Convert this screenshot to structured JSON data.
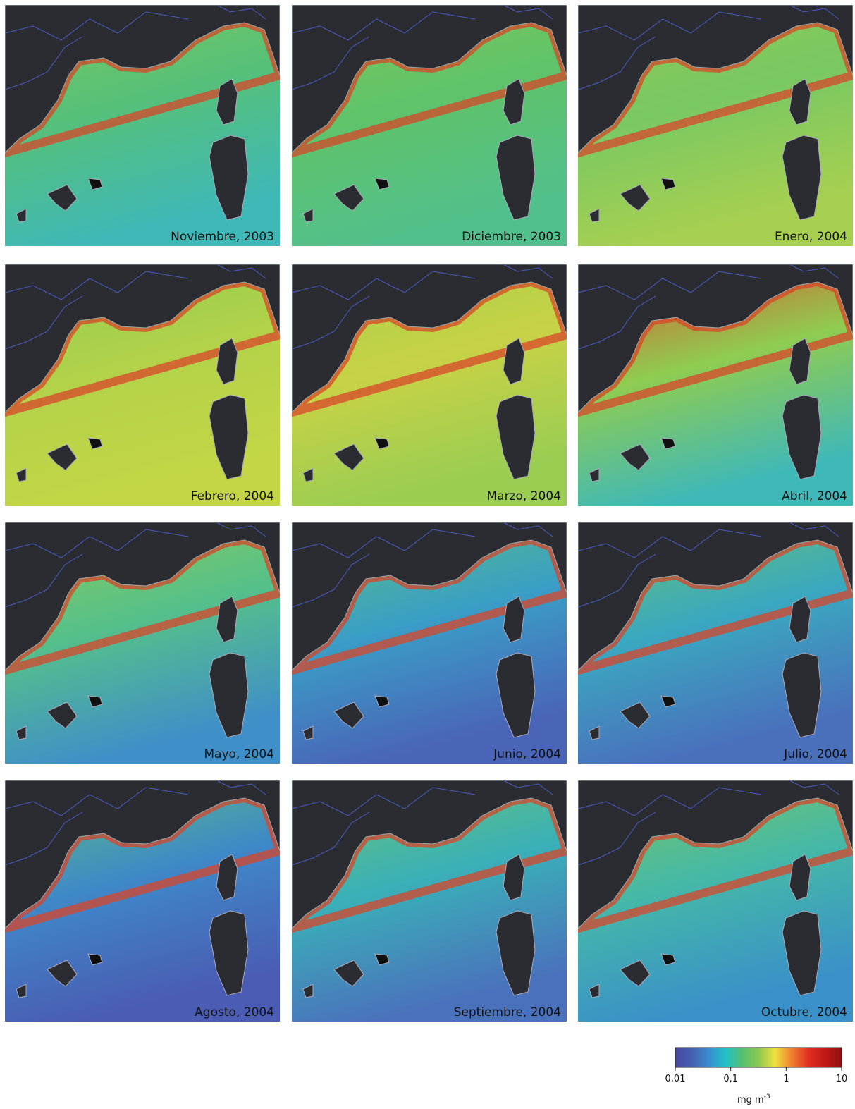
{
  "panels": [
    {
      "label": "Noviembre, 2003",
      "colors": [
        "#7cc85a",
        "#55c07a",
        "#3fb8b8"
      ]
    },
    {
      "label": "Diciembre, 2003",
      "colors": [
        "#7cc85a",
        "#5fc36a",
        "#52c08c"
      ]
    },
    {
      "label": "Enero, 2004",
      "colors": [
        "#8acb55",
        "#7ac862",
        "#a8d050"
      ]
    },
    {
      "label": "Febrero, 2004",
      "colors": [
        "#8ccb52",
        "#b2d24a",
        "#c4d645"
      ]
    },
    {
      "label": "Marzo, 2004",
      "colors": [
        "#a2cf4c",
        "#c8d246",
        "#9acd52"
      ]
    },
    {
      "label": "Abril, 2004",
      "colors": [
        "#e04a2a",
        "#8fcc50",
        "#3fb8b8"
      ]
    },
    {
      "label": "Mayo, 2004",
      "colors": [
        "#8ecb55",
        "#55c08a",
        "#3f8fc8"
      ]
    },
    {
      "label": "Junio, 2004",
      "colors": [
        "#5cc27a",
        "#3a9ec6",
        "#4a64b8"
      ]
    },
    {
      "label": "Julio, 2004",
      "colors": [
        "#6cc46a",
        "#3aa8c0",
        "#4a70bc"
      ]
    },
    {
      "label": "Agosto, 2004",
      "colors": [
        "#5cc27a",
        "#3f88c8",
        "#4a5cb4"
      ]
    },
    {
      "label": "Septiembre, 2004",
      "colors": [
        "#6ec56a",
        "#3ab0b8",
        "#4a72bc"
      ]
    },
    {
      "label": "Octubre, 2004",
      "colors": [
        "#7cc85a",
        "#45b8a8",
        "#3a90c8"
      ]
    }
  ],
  "colorbar": {
    "lim": [
      0.01,
      10
    ],
    "ticks": [
      {
        "value": 0.01,
        "label": "0,01"
      },
      {
        "value": 0.1,
        "label": "0,1"
      },
      1,
      10
    ],
    "unit": "mg m",
    "unit_exponent": "-3",
    "colors": [
      "#46489e",
      "#4560b0",
      "#3a8cd0",
      "#20c0c8",
      "#52c070",
      "#8cc850",
      "#f0e040",
      "#f08030",
      "#e03020",
      "#c01818",
      "#8e1010"
    ]
  }
}
